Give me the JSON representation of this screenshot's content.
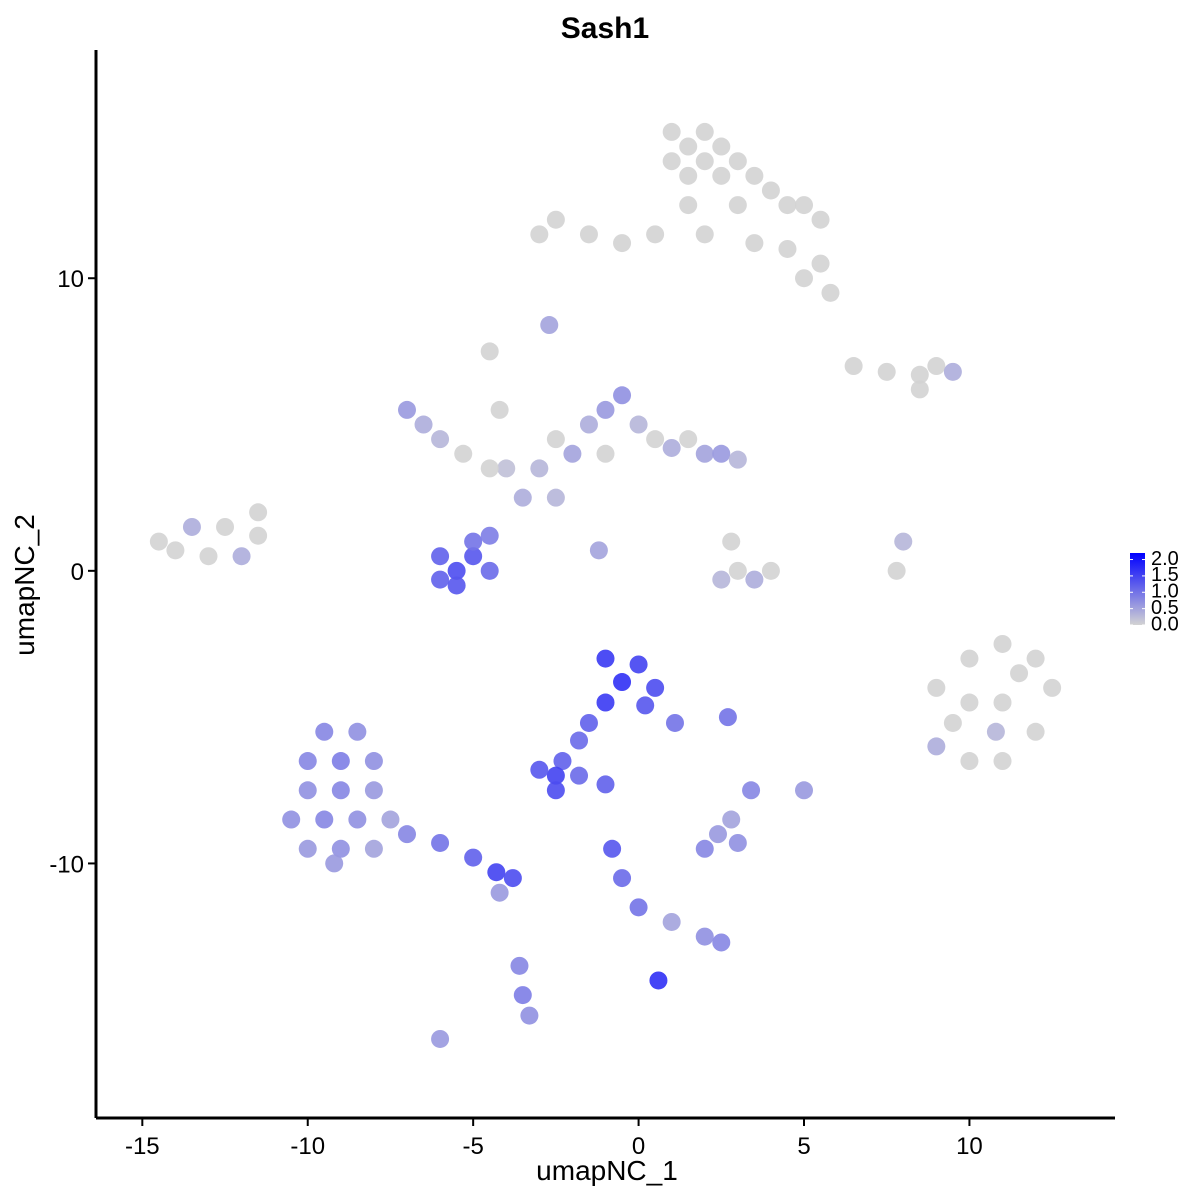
{
  "chart_data": {
    "type": "scatter",
    "title": "Sash1",
    "x_label": "umapNC_1",
    "y_label": "umapNC_2",
    "xlim": [
      -16.4,
      14.4
    ],
    "ylim": [
      -18.7,
      17.8
    ],
    "xticks": [
      -15,
      -10,
      -5,
      0,
      5,
      10
    ],
    "yticks": [
      -10,
      0,
      10
    ],
    "color_low": "#d3d3d3",
    "color_high": "#0000ff",
    "colorbar_lim": [
      0,
      2.2
    ],
    "colorbar_ticks": [
      {
        "value": 0,
        "label": "0.0"
      },
      {
        "value": 0.5,
        "label": "0.5"
      },
      {
        "value": 1,
        "label": "1.0"
      },
      {
        "value": 1.5,
        "label": "1.5"
      },
      {
        "value": 2,
        "label": "2.0"
      }
    ],
    "x": [
      1,
      2,
      1.5,
      2.5,
      1,
      2,
      3,
      1.5,
      2.5,
      3.5,
      4,
      4.5,
      5,
      5.5,
      3,
      1.5,
      0.5,
      -0.5,
      -1.5,
      -2.5,
      -3,
      4.5,
      5.5,
      5,
      5.8,
      3.5,
      2,
      6.5,
      7.5,
      8.5,
      9,
      9.5,
      8.5,
      -14.5,
      -13.5,
      -12.5,
      -11.5,
      -13,
      -12,
      -14,
      -11.5,
      -6,
      -5,
      -5.5,
      -4.5,
      -6,
      -5,
      -4.5,
      -5.5,
      -7,
      -6.5,
      -6,
      -5.3,
      -4.5,
      -4.2,
      -4,
      -4.5,
      -3.5,
      -3,
      -2.5,
      -2,
      -1.5,
      -1,
      -0.5,
      0,
      0.5,
      1,
      1.5,
      2,
      2.5,
      3,
      -1,
      -2.5,
      -1.2,
      2.8,
      3,
      3.5,
      4,
      2.5,
      7.8,
      8,
      -2.7,
      9,
      10,
      11,
      12,
      12.5,
      12,
      11,
      10,
      9,
      10,
      11,
      11.5,
      9.5,
      10.8,
      -1,
      0,
      -0.5,
      0.5,
      -1,
      0.2,
      1.1,
      -1.5,
      -1.8,
      -2.3,
      -2.5,
      -3,
      -2.5,
      -1.8,
      -1,
      -9.5,
      -8.5,
      -10,
      -9,
      -8,
      -10,
      -9,
      -8,
      -10.5,
      -9.5,
      -8.5,
      -7.5,
      -10,
      -9,
      -8,
      -9.2,
      -7,
      -6,
      -5,
      -4.3,
      -3.8,
      -4.2,
      -3.6,
      -3.5,
      -3.3,
      -6,
      -0.8,
      -0.5,
      0,
      1,
      2,
      2.5,
      0.6,
      2,
      3,
      2.4,
      2.8,
      2.7,
      3.4,
      5
    ],
    "y": [
      15,
      15,
      14.5,
      14.5,
      14,
      14,
      14,
      13.5,
      13.5,
      13.5,
      13,
      12.5,
      12.5,
      12,
      12.5,
      12.5,
      11.5,
      11.2,
      11.5,
      12,
      11.5,
      11,
      10.5,
      10,
      9.5,
      11.2,
      11.5,
      7,
      6.8,
      6.7,
      7,
      6.8,
      6.2,
      1,
      1.5,
      1.5,
      2,
      0.5,
      0.5,
      0.7,
      1.2,
      0.5,
      0.5,
      0,
      0,
      -0.3,
      1,
      1.2,
      -0.5,
      5.5,
      5,
      4.5,
      4,
      7.5,
      5.5,
      3.5,
      3.5,
      2.5,
      3.5,
      4.5,
      4,
      5,
      5.5,
      6,
      5,
      4.5,
      4.2,
      4.5,
      4,
      4,
      3.8,
      4,
      2.5,
      0.7,
      1,
      0,
      -0.3,
      0,
      -0.3,
      0,
      1,
      8.4,
      -4,
      -3,
      -2.5,
      -3,
      -4,
      -5.5,
      -6.5,
      -6.5,
      -6,
      -4.5,
      -4.5,
      -3.5,
      -5.2,
      -5.5,
      -3,
      -3.2,
      -3.8,
      -4,
      -4.5,
      -4.6,
      -5.2,
      -5.2,
      -5.8,
      -6.5,
      -7,
      -6.8,
      -7.5,
      -7,
      -7.3,
      -5.5,
      -5.5,
      -6.5,
      -6.5,
      -6.5,
      -7.5,
      -7.5,
      -7.5,
      -8.5,
      -8.5,
      -8.5,
      -8.5,
      -9.5,
      -9.5,
      -9.5,
      -10,
      -9,
      -9.3,
      -9.8,
      -10.3,
      -10.5,
      -11,
      -13.5,
      -14.5,
      -15.2,
      -16,
      -9.5,
      -10.5,
      -11.5,
      -12,
      -12.5,
      -12.7,
      -14,
      -9.5,
      -9.3,
      -9,
      -8.5,
      -5,
      -7.5,
      -7.5
    ],
    "values": [
      0,
      0,
      0,
      0,
      0,
      0,
      0,
      0,
      0,
      0,
      0,
      0,
      0,
      0,
      0,
      0,
      0,
      0,
      0,
      0,
      0,
      0,
      0,
      0,
      0,
      0,
      0,
      0,
      0,
      0,
      0,
      0.4,
      0,
      0,
      0.4,
      0,
      0,
      0,
      0.4,
      0,
      0,
      1.2,
      1.3,
      1.4,
      1.1,
      1.2,
      1.0,
      0.9,
      1.3,
      0.6,
      0.4,
      0.3,
      0,
      0,
      0,
      0.2,
      0,
      0.4,
      0.3,
      0,
      0.5,
      0.4,
      0.6,
      0.7,
      0.3,
      0,
      0.4,
      0,
      0.5,
      0.6,
      0.3,
      0,
      0.3,
      0.5,
      0,
      0,
      0.4,
      0,
      0.3,
      0,
      0.3,
      0.5,
      0,
      0,
      0,
      0,
      0,
      0,
      0,
      0,
      0.4,
      0,
      0,
      0,
      0,
      0.3,
      1.6,
      1.5,
      1.7,
      1.4,
      1.6,
      1.3,
      1.0,
      1.2,
      1.1,
      1.2,
      1.5,
      1.3,
      1.4,
      1.1,
      1.2,
      0.8,
      0.7,
      0.8,
      0.9,
      0.7,
      0.7,
      0.8,
      0.6,
      0.7,
      0.8,
      0.7,
      0.5,
      0.6,
      0.7,
      0.5,
      0.6,
      0.8,
      1.0,
      1.2,
      1.5,
      1.4,
      0.6,
      0.8,
      0.9,
      0.7,
      0.6,
      1.3,
      1.1,
      1.0,
      0.5,
      0.7,
      0.8,
      1.7,
      0.8,
      0.7,
      0.6,
      0.5,
      1.0,
      0.8,
      0.6
    ]
  }
}
